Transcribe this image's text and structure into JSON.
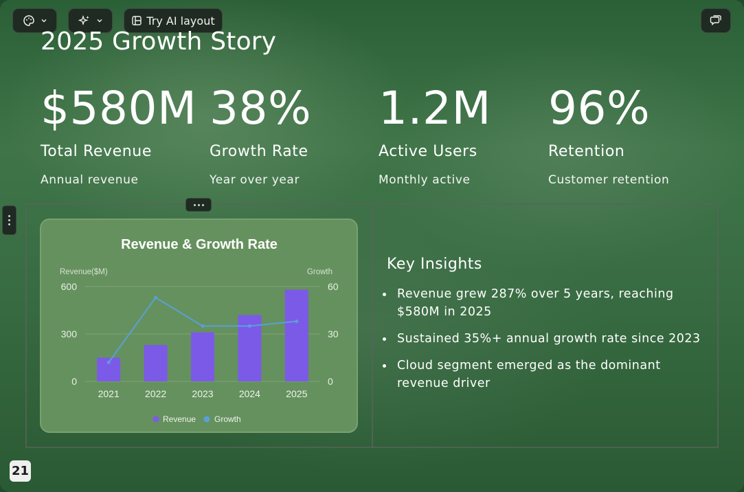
{
  "toolbar": {
    "theme_icon": "palette-icon",
    "ai_icon": "sparkle-icon",
    "layout_label": "Try AI layout",
    "layout_icon": "layout-icon",
    "comment_icon": "comment-icon"
  },
  "slide": {
    "title": "2025 Growth Story",
    "page_number": "21"
  },
  "stats": [
    {
      "value": "$580M",
      "label": "Total Revenue",
      "sub": "Annual revenue"
    },
    {
      "value": "38%",
      "label": "Growth Rate",
      "sub": "Year over year"
    },
    {
      "value": "1.2M",
      "label": "Active Users",
      "sub": "Monthly active"
    },
    {
      "value": "96%",
      "label": "Retention",
      "sub": "Customer retention"
    }
  ],
  "insights": {
    "heading": "Key Insights",
    "items": [
      "Revenue grew 287% over 5 years, reaching $580M in 2025",
      "Sustained 35%+ annual growth rate since 2023",
      "Cloud segment emerged as the dominant revenue driver"
    ]
  },
  "colors": {
    "bar": "#7c5ae8",
    "line": "#5b9fd6",
    "card": "#65915e"
  },
  "chart_data": {
    "type": "bar",
    "title": "Revenue & Growth Rate",
    "categories": [
      "2021",
      "2022",
      "2023",
      "2024",
      "2025"
    ],
    "series": [
      {
        "name": "Revenue",
        "type": "bar",
        "axis": "left",
        "values": [
          150,
          230,
          310,
          420,
          580
        ]
      },
      {
        "name": "Growth",
        "type": "line",
        "axis": "right",
        "values": [
          12,
          53,
          35,
          35,
          38
        ]
      }
    ],
    "ylabel": "Revenue($M)",
    "y2label": "Growth",
    "ylim": [
      0,
      600
    ],
    "y2lim": [
      0,
      60
    ],
    "yticks": [
      "0",
      "300",
      "600"
    ],
    "y2ticks": [
      "0",
      "30",
      "60"
    ],
    "legend": "bottom",
    "grid": true
  }
}
